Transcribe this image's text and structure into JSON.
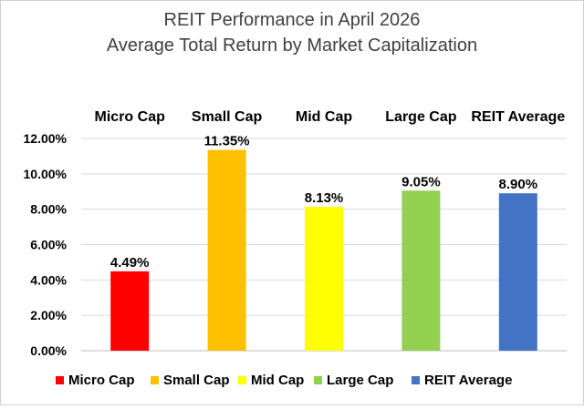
{
  "chart_data": {
    "type": "bar",
    "title": "REIT Performance in April 2026",
    "subtitle": "Average Total Return by Market Capitalization",
    "categories": [
      "Micro Cap",
      "Small Cap",
      "Mid Cap",
      "Large Cap",
      "REIT Average"
    ],
    "values": [
      4.49,
      11.35,
      8.13,
      9.05,
      8.9
    ],
    "data_labels": [
      "4.49%",
      "11.35%",
      "8.13%",
      "9.05%",
      "8.90%"
    ],
    "colors": [
      "#ff0000",
      "#ffc000",
      "#ffff00",
      "#92d050",
      "#4472c4"
    ],
    "yticks": [
      "0.00%",
      "2.00%",
      "4.00%",
      "6.00%",
      "8.00%",
      "10.00%",
      "12.00%"
    ],
    "ylim": [
      0,
      12
    ],
    "xlabel": "",
    "ylabel": "",
    "grid": true,
    "legend": [
      "Micro Cap",
      "Small Cap",
      "Mid Cap",
      "Large Cap",
      "REIT Average"
    ],
    "legend_position": "bottom",
    "category_labels_position": "top"
  }
}
